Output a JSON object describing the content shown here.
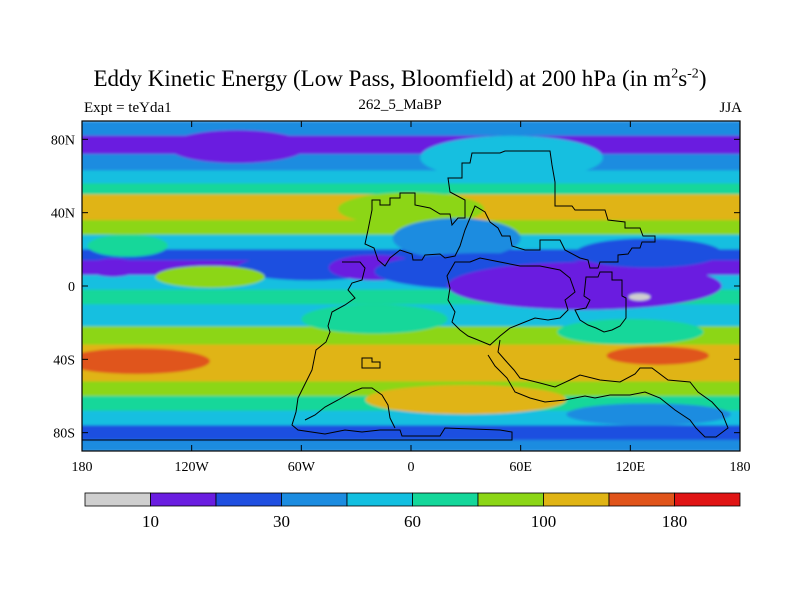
{
  "chart_data": {
    "type": "heatmap",
    "title": "Eddy Kinetic Energy (Low Pass, Bloomfield) at 200 hPa (in m",
    "title_units_sup1": "2",
    "title_units_mid": "s",
    "title_units_sup2": "-2",
    "title_units_end": ")",
    "subtitle_left": "Expt = teYda1",
    "subtitle_center": "262_5_MaBP",
    "subtitle_right": "JJA",
    "x_ticks": [
      {
        "value": -180,
        "label": "180"
      },
      {
        "value": -120,
        "label": "120W"
      },
      {
        "value": -60,
        "label": "60W"
      },
      {
        "value": 0,
        "label": "0"
      },
      {
        "value": 60,
        "label": "60E"
      },
      {
        "value": 120,
        "label": "120E"
      },
      {
        "value": 180,
        "label": "180"
      }
    ],
    "y_ticks": [
      {
        "value": 80,
        "label": "80N"
      },
      {
        "value": 40,
        "label": "40N"
      },
      {
        "value": 0,
        "label": "0"
      },
      {
        "value": -40,
        "label": "40S"
      },
      {
        "value": -80,
        "label": "80S"
      }
    ],
    "xlim": [
      -180,
      180
    ],
    "ylim": [
      -90,
      90
    ],
    "levels": [
      5,
      10,
      20,
      30,
      45,
      60,
      80,
      100,
      120,
      180
    ],
    "colorbar_colors": [
      "#cfcfcf",
      "#6a1de0",
      "#1f4fe0",
      "#1c8ce0",
      "#12bfe0",
      "#14d79a",
      "#8cd616",
      "#e0b414",
      "#e0541a",
      "#e01414"
    ],
    "colorbar_labels": [
      {
        "index": 1,
        "label": "10"
      },
      {
        "index": 3,
        "label": "30"
      },
      {
        "index": 5,
        "label": "60"
      },
      {
        "index": 7,
        "label": "100"
      },
      {
        "index": 9,
        "label": "180"
      }
    ],
    "bands": [
      {
        "lat_from": 90,
        "lat_to": 82,
        "level": 3
      },
      {
        "lat_from": 82,
        "lat_to": 72,
        "level": 1
      },
      {
        "lat_from": 72,
        "lat_to": 63,
        "level": 3
      },
      {
        "lat_from": 63,
        "lat_to": 56,
        "level": 4
      },
      {
        "lat_from": 56,
        "lat_to": 50,
        "level": 5
      },
      {
        "lat_from": 50,
        "lat_to": 36,
        "level": 7
      },
      {
        "lat_from": 36,
        "lat_to": 28,
        "level": 6
      },
      {
        "lat_from": 28,
        "lat_to": 20,
        "level": 4
      },
      {
        "lat_from": 20,
        "lat_to": 14,
        "level": 2
      },
      {
        "lat_from": 14,
        "lat_to": 6,
        "level": 1
      },
      {
        "lat_from": 6,
        "lat_to": -2,
        "level": 4
      },
      {
        "lat_from": -2,
        "lat_to": -10,
        "level": 5
      },
      {
        "lat_from": -10,
        "lat_to": -22,
        "level": 4
      },
      {
        "lat_from": -22,
        "lat_to": -32,
        "level": 6
      },
      {
        "lat_from": -32,
        "lat_to": -52,
        "level": 7
      },
      {
        "lat_from": -52,
        "lat_to": -60,
        "level": 6
      },
      {
        "lat_from": -60,
        "lat_to": -68,
        "level": 5
      },
      {
        "lat_from": -68,
        "lat_to": -76,
        "level": 4
      },
      {
        "lat_from": -76,
        "lat_to": -84,
        "level": 2
      },
      {
        "lat_from": -84,
        "lat_to": -90,
        "level": 3
      }
    ],
    "blobs": [
      {
        "lon": -95,
        "lat": 76,
        "rlon": 38,
        "rlat": 9,
        "level": 1
      },
      {
        "lon": 55,
        "lat": 70,
        "rlon": 50,
        "rlat": 12,
        "level": 4
      },
      {
        "lon": 0,
        "lat": 42,
        "rlon": 40,
        "rlat": 9,
        "level": 6
      },
      {
        "lon": 25,
        "lat": 26,
        "rlon": 35,
        "rlat": 11,
        "level": 3
      },
      {
        "lon": -155,
        "lat": 22,
        "rlon": 22,
        "rlat": 6,
        "level": 5
      },
      {
        "lon": -163,
        "lat": 10,
        "rlon": 14,
        "rlat": 5,
        "level": 1
      },
      {
        "lon": -55,
        "lat": 10,
        "rlon": 40,
        "rlat": 7,
        "level": 2
      },
      {
        "lon": -20,
        "lat": 10,
        "rlon": 25,
        "rlat": 7,
        "level": 1
      },
      {
        "lon": -110,
        "lat": 5,
        "rlon": 30,
        "rlat": 6,
        "level": 6
      },
      {
        "lon": 40,
        "lat": 8,
        "rlon": 60,
        "rlat": 10,
        "level": 2
      },
      {
        "lon": 95,
        "lat": 0,
        "rlon": 75,
        "rlat": 13,
        "level": 1
      },
      {
        "lon": 130,
        "lat": 18,
        "rlon": 40,
        "rlat": 8,
        "level": 2
      },
      {
        "lon": -20,
        "lat": -18,
        "rlon": 40,
        "rlat": 8,
        "level": 5
      },
      {
        "lon": 120,
        "lat": -25,
        "rlon": 40,
        "rlat": 7,
        "level": 5
      },
      {
        "lon": -150,
        "lat": -41,
        "rlon": 40,
        "rlat": 7,
        "level": 8
      },
      {
        "lon": 135,
        "lat": -38,
        "rlon": 28,
        "rlat": 5,
        "level": 8
      },
      {
        "lon": 30,
        "lat": -62,
        "rlon": 55,
        "rlat": 8,
        "level": 7
      },
      {
        "lon": 130,
        "lat": -70,
        "rlon": 45,
        "rlat": 6,
        "level": 3
      },
      {
        "lon": 125,
        "lat": -6,
        "rlon": 6,
        "rlat": 2,
        "level": 0
      }
    ]
  }
}
